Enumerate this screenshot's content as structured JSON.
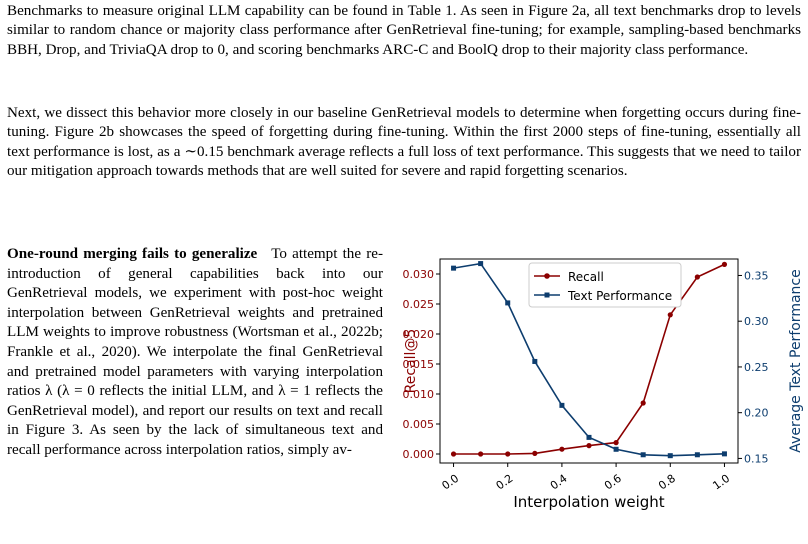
{
  "paragraph1": "Benchmarks to measure original LLM capability can be found in Table 1. As seen in Figure 2a, all text benchmarks drop to levels similar to random chance or majority class performance after GenRetrieval fine-tuning; for example, sampling-based benchmarks BBH, Drop, and TriviaQA drop to 0, and scoring benchmarks ARC-C and BoolQ drop to their majority class performance.",
  "paragraph2": "Next, we dissect this behavior more closely in our baseline GenRetrieval models to determine when forgetting occurs during fine-tuning. Figure 2b showcases the speed of forgetting during fine-tuning. Within the first 2000 steps of fine-tuning, essentially all text performance is lost, as a ∼0.15 benchmark average reflects a full loss of text performance. This suggests that we need to tailor our mitigation approach towards methods that are well suited for severe and rapid forgetting scenarios.",
  "section": {
    "heading": "One-round merging fails to generalize",
    "body": "To attempt the re-introduction of general capabilities back into our GenRetrieval models, we experiment with post-hoc weight interpolation between GenRetrieval weights and pretrained LLM weights to improve robustness (Wortsman et al., 2022b; Frankle et al., 2020). We interpolate the final GenRetrieval and pretrained model parameters with varying interpolation ratios λ (λ = 0 reflects the initial LLM, and λ = 1 reflects the GenRetrieval model), and report our results on text and recall in Figure 3. As seen by the lack of simultaneous text and recall performance across interpolation ratios, simply av-"
  },
  "chart_data": {
    "type": "line",
    "xlabel": "Interpolation weight",
    "ylabel_left": "Recall@5",
    "ylabel_right": "Average Text Performance",
    "x": [
      0.0,
      0.1,
      0.2,
      0.3,
      0.4,
      0.5,
      0.6,
      0.7,
      0.8,
      0.9,
      1.0
    ],
    "xticks": [
      "0.0",
      "0.2",
      "0.4",
      "0.6",
      "0.8",
      "1.0"
    ],
    "xlim": [
      -0.05,
      1.05
    ],
    "yticks_left": [
      "0.000",
      "0.005",
      "0.010",
      "0.015",
      "0.020",
      "0.025",
      "0.030"
    ],
    "ylim_left": [
      -0.0015,
      0.0325
    ],
    "yticks_right": [
      "0.15",
      "0.20",
      "0.25",
      "0.30",
      "0.35"
    ],
    "ylim_right": [
      0.145,
      0.368
    ],
    "legend_position": "top-center",
    "series": [
      {
        "name": "Recall",
        "axis": "left",
        "color": "#8b0000",
        "marker": "circle",
        "values": [
          0.0,
          0.0,
          0.0,
          0.0001,
          0.0008,
          0.0014,
          0.0019,
          0.0085,
          0.0232,
          0.0295,
          0.0316
        ]
      },
      {
        "name": "Text Performance",
        "axis": "right",
        "color": "#0d3d6e",
        "marker": "square",
        "values": [
          0.358,
          0.363,
          0.32,
          0.256,
          0.208,
          0.173,
          0.16,
          0.154,
          0.153,
          0.154,
          0.155
        ]
      }
    ]
  }
}
